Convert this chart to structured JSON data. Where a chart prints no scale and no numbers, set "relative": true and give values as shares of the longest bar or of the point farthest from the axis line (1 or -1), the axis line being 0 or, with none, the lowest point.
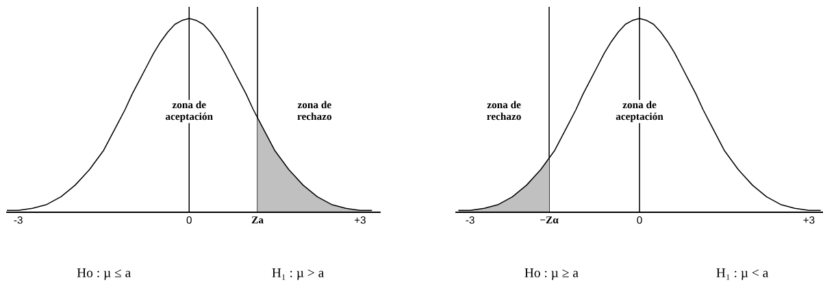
{
  "chart_data": [
    {
      "type": "line",
      "relative": true,
      "xlim": [
        -3.2,
        3.35
      ],
      "xticks": [
        -3,
        0,
        {
          "value": 1.2,
          "label": "Za"
        },
        {
          "value": 3,
          "label": "+3"
        }
      ],
      "series": [
        {
          "type": "area",
          "color": "#c0c0c0",
          "x": [
            1.2,
            1.25,
            1.5,
            1.75,
            2,
            2.25,
            2.5,
            2.75,
            3,
            3.2
          ],
          "values": [
            0.49,
            0.46,
            0.32,
            0.22,
            0.14,
            0.08,
            0.04,
            0.02,
            0.01,
            0.01
          ]
        },
        {
          "color": "#000000",
          "x": [
            -3.2,
            -3,
            -2.75,
            -2.5,
            -2.25,
            -2,
            -1.75,
            -1.5,
            -1.25,
            -1.125,
            -1,
            -0.875,
            -0.75,
            -0.625,
            -0.5,
            -0.375,
            -0.25,
            -0.125,
            0,
            0.125,
            0.25,
            0.375,
            0.5,
            0.625,
            0.75,
            0.875,
            1,
            1.125,
            1.25,
            1.5,
            1.75,
            2,
            2.25,
            2.5,
            2.75,
            3,
            3.2
          ],
          "values": [
            0.01,
            0.01,
            0.02,
            0.04,
            0.08,
            0.14,
            0.22,
            0.32,
            0.46,
            0.53,
            0.61,
            0.68,
            0.75,
            0.82,
            0.88,
            0.93,
            0.97,
            0.99,
            1,
            0.99,
            0.97,
            0.93,
            0.88,
            0.82,
            0.75,
            0.68,
            0.61,
            0.53,
            0.46,
            0.32,
            0.22,
            0.14,
            0.08,
            0.04,
            0.02,
            0.01,
            0.01
          ]
        }
      ],
      "ref_lines": [
        {
          "axis": "x",
          "value": 0,
          "color": "#000000"
        },
        {
          "axis": "x",
          "value": 1.2,
          "color": "#000000"
        }
      ],
      "annotations": [
        {
          "text": "zona de\naceptación",
          "x": 0,
          "y": 0.52
        },
        "zona de\nrechazo",
        "Ho : µ ≤ a",
        "H₁ : µ > a"
      ]
    },
    {
      "type": "line",
      "relative": true,
      "xlim": [
        -3.25,
        3.25
      ],
      "xticks": [
        -3,
        {
          "value": -1.6,
          "label": "−Zα"
        },
        0,
        {
          "value": 3,
          "label": "+3"
        }
      ],
      "series": [
        {
          "type": "area",
          "color": "#c0c0c0",
          "x": [
            -3.2,
            -3,
            -2.75,
            -2.5,
            -2.25,
            -2,
            -1.75,
            -1.6
          ],
          "values": [
            0.01,
            0.01,
            0.02,
            0.04,
            0.08,
            0.14,
            0.22,
            0.28
          ]
        },
        {
          "color": "#000000",
          "x": [
            -3.2,
            -3,
            -2.75,
            -2.5,
            -2.25,
            -2,
            -1.75,
            -1.5,
            -1.25,
            -1.125,
            -1,
            -0.875,
            -0.75,
            -0.625,
            -0.5,
            -0.375,
            -0.25,
            -0.125,
            0,
            0.125,
            0.25,
            0.375,
            0.5,
            0.625,
            0.75,
            0.875,
            1,
            1.125,
            1.25,
            1.5,
            1.75,
            2,
            2.25,
            2.5,
            2.75,
            3,
            3.2
          ],
          "values": [
            0.01,
            0.01,
            0.02,
            0.04,
            0.08,
            0.14,
            0.22,
            0.32,
            0.46,
            0.53,
            0.61,
            0.68,
            0.75,
            0.82,
            0.88,
            0.93,
            0.97,
            0.99,
            1,
            0.99,
            0.97,
            0.93,
            0.88,
            0.82,
            0.75,
            0.68,
            0.61,
            0.53,
            0.46,
            0.32,
            0.22,
            0.14,
            0.08,
            0.04,
            0.02,
            0.01,
            0.01
          ]
        }
      ],
      "ref_lines": [
        {
          "axis": "x",
          "value": -1.6,
          "color": "#000000"
        },
        {
          "axis": "x",
          "value": 0,
          "color": "#000000"
        }
      ],
      "annotations": [
        "zona de\nrechazo",
        {
          "text": "zona de\naceptación",
          "x": 0,
          "y": 0.52
        },
        "Ho : µ ≥ a",
        "H₁ : µ < a"
      ]
    }
  ]
}
